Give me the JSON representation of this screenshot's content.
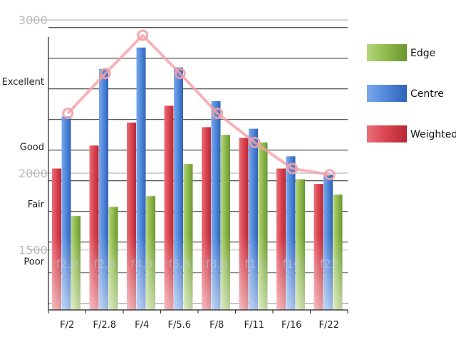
{
  "chart_data": {
    "type": "bar",
    "title": "",
    "xlabel": "",
    "ylabel": "",
    "categories": [
      "F/2",
      "F/2.8",
      "F/4",
      "F/5.6",
      "F/8",
      "F/11",
      "F/16",
      "F/22"
    ],
    "series": [
      {
        "name": "Weighted",
        "values": [
          2030,
          2180,
          2330,
          2440,
          2300,
          2230,
          2030,
          1930
        ],
        "color": "#d9434f",
        "kind": "bar"
      },
      {
        "name": "Centre",
        "values": [
          2370,
          2680,
          2820,
          2690,
          2470,
          2290,
          2110,
          1990
        ],
        "color": "#4f86d8",
        "kind": "bar"
      },
      {
        "name": "Edge",
        "values": [
          1720,
          1780,
          1850,
          2060,
          2250,
          2200,
          1960,
          1860
        ],
        "color": "#8db84a",
        "kind": "bar"
      },
      {
        "name": "",
        "values": [
          2390,
          2650,
          2900,
          2650,
          2390,
          2200,
          2030,
          1990
        ],
        "color": "#f2a0a6",
        "kind": "line"
      }
    ],
    "ylim": [
      1000,
      3050
    ],
    "y_ticks": [
      {
        "value": 3000,
        "label": "3000"
      },
      {
        "value": 2000,
        "label": "2000"
      },
      {
        "value": 1500,
        "label": "1500"
      }
    ],
    "quality_labels": [
      {
        "value": 2600,
        "label": "Excellent"
      },
      {
        "value": 2175,
        "label": "Good"
      },
      {
        "value": 1800,
        "label": "Fair"
      },
      {
        "value": 1425,
        "label": "Poor"
      }
    ],
    "gridlines": [
      2950,
      2750,
      2550,
      2350,
      2150,
      1950,
      1750,
      1550,
      1350,
      1150
    ],
    "bar_watermarks": [
      "f2.0",
      "f2.8",
      "f4.0",
      "f5.6",
      "f8.0",
      "f11",
      "f16",
      "f22"
    ],
    "legend": {
      "position": "right",
      "order": [
        "Edge",
        "Centre",
        "Weighted"
      ]
    },
    "grid": true
  }
}
